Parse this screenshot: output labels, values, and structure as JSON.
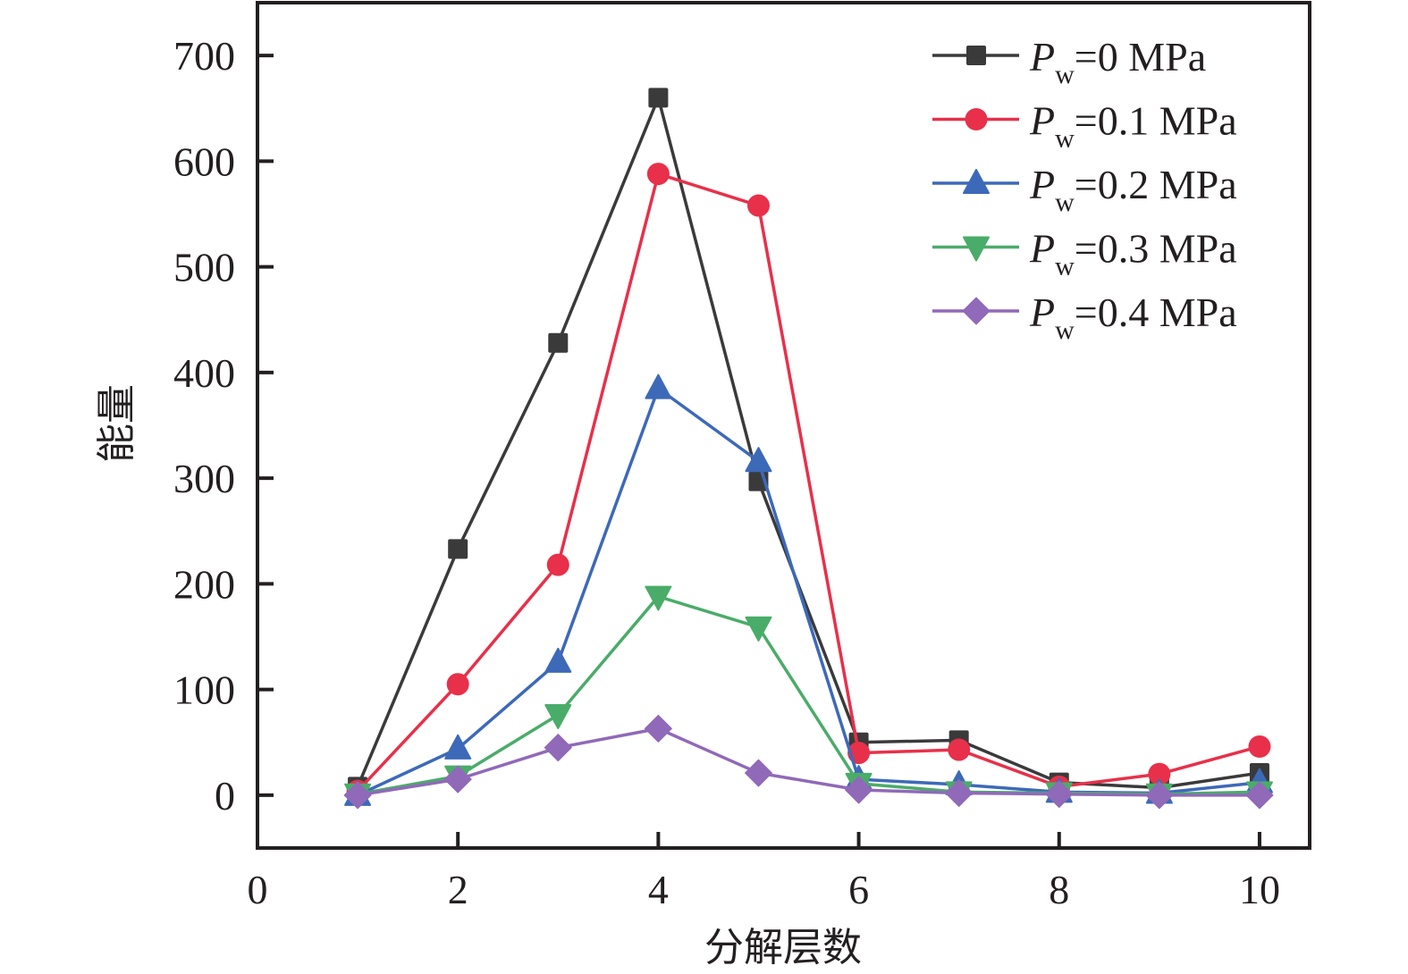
{
  "chart_data": {
    "type": "line",
    "title": "",
    "xlabel": "分解层数",
    "ylabel": "能量",
    "xlim": [
      0,
      10.5
    ],
    "ylim": [
      -50,
      750
    ],
    "xticks": [
      0,
      2,
      4,
      6,
      8,
      10
    ],
    "xtick_labels": [
      "0",
      "2",
      "4",
      "6",
      "8",
      "10"
    ],
    "yticks": [
      0,
      100,
      200,
      300,
      400,
      500,
      600,
      700
    ],
    "ytick_labels": [
      "0",
      "100",
      "200",
      "300",
      "400",
      "500",
      "600",
      "700"
    ],
    "grid": false,
    "legend_position": "top-right",
    "x": [
      1,
      2,
      3,
      4,
      5,
      6,
      7,
      8,
      9,
      10
    ],
    "series": [
      {
        "name": "Pw=0 MPa",
        "label_main": "P",
        "label_sub": "w",
        "label_rest": "=0 MPa",
        "color": "#3a3a3a",
        "marker": "square",
        "values": [
          8,
          233,
          428,
          660,
          297,
          50,
          52,
          12,
          7,
          21
        ]
      },
      {
        "name": "Pw=0.1 MPa",
        "label_main": "P",
        "label_sub": "w",
        "label_rest": "=0.1 MPa",
        "color": "#e8304a",
        "marker": "circle",
        "values": [
          4,
          105,
          218,
          588,
          558,
          40,
          43,
          8,
          20,
          46
        ]
      },
      {
        "name": "Pw=0.2 MPa",
        "label_main": "P",
        "label_sub": "w",
        "label_rest": "=0.2 MPa",
        "color": "#3d69b9",
        "marker": "triangle-up",
        "values": [
          0,
          44,
          126,
          385,
          316,
          15,
          10,
          3,
          2,
          12
        ]
      },
      {
        "name": "Pw=0.3 MPa",
        "label_main": "P",
        "label_sub": "w",
        "label_rest": "=0.3 MPa",
        "color": "#4aac69",
        "marker": "triangle-down",
        "values": [
          1,
          18,
          76,
          188,
          159,
          11,
          3,
          2,
          1,
          3
        ]
      },
      {
        "name": "Pw=0.4 MPa",
        "label_main": "P",
        "label_sub": "w",
        "label_rest": "=0.4 MPa",
        "color": "#9069b9",
        "marker": "diamond",
        "values": [
          0,
          15,
          45,
          63,
          21,
          5,
          2,
          1,
          0,
          0
        ]
      }
    ]
  }
}
